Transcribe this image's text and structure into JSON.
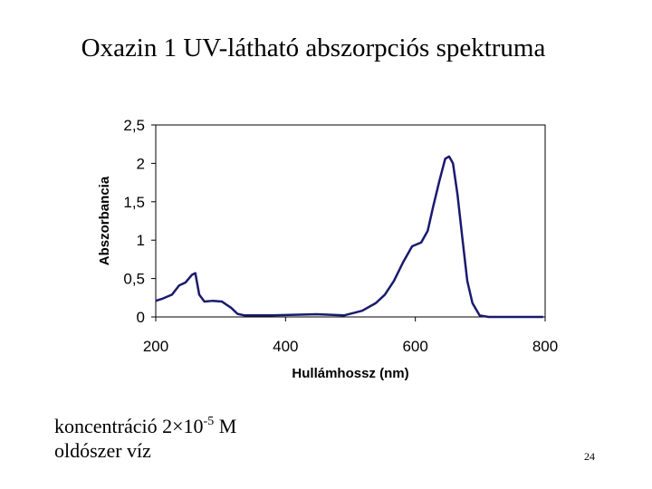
{
  "chart_data": {
    "type": "line",
    "title": "Oxazin 1 UV-látható abszorpciós spektruma",
    "xlabel": "Hullámhossz (nm)",
    "ylabel": "Abszorbancia",
    "x": [
      200,
      211,
      225,
      236,
      246,
      256,
      261,
      267,
      275,
      288,
      302,
      316,
      326,
      337,
      379,
      448,
      490,
      518,
      539,
      553,
      567,
      581,
      595,
      609,
      619,
      627,
      637,
      646,
      652,
      658,
      665,
      672,
      680,
      688,
      699,
      713,
      797
    ],
    "series": [
      {
        "color": "#1a1a6e",
        "values": [
          0.21,
          0.24,
          0.29,
          0.41,
          0.45,
          0.55,
          0.57,
          0.29,
          0.2,
          0.21,
          0.2,
          0.12,
          0.04,
          0.02,
          0.02,
          0.035,
          0.02,
          0.08,
          0.18,
          0.29,
          0.47,
          0.71,
          0.92,
          0.97,
          1.12,
          1.42,
          1.77,
          2.06,
          2.09,
          2.0,
          1.59,
          1.06,
          0.47,
          0.18,
          0.02,
          0,
          0
        ]
      }
    ],
    "xlim": [
      200,
      800
    ],
    "xticks": [
      200,
      400,
      600,
      800
    ],
    "ylim": [
      0,
      2.5
    ],
    "yticks": [
      0,
      {
        "value": 0.5,
        "label": "0,5"
      },
      1,
      {
        "value": 1.5,
        "label": "1,5"
      },
      2,
      {
        "value": 2.5,
        "label": "2,5"
      }
    ]
  },
  "notes": {
    "line1": {
      "text": "koncentráció 2×10",
      "superscript": "-5",
      "unit": " M"
    },
    "line2": "oldószer víz"
  },
  "page_number": "24"
}
